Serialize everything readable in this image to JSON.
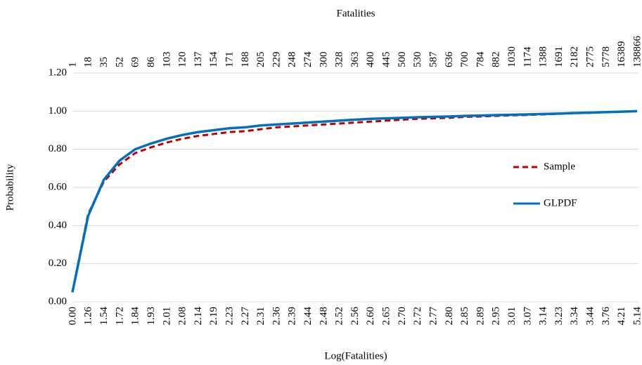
{
  "chart_data": {
    "type": "line",
    "x2_label": "Fatalities",
    "x_label": "Log(Fatalities)",
    "y_label": "Probability",
    "categories": [
      "0.00",
      "1.26",
      "1.54",
      "1.72",
      "1.84",
      "1.93",
      "2.01",
      "2.08",
      "2.14",
      "2.19",
      "2.23",
      "2.27",
      "2.31",
      "2.36",
      "2.39",
      "2.44",
      "2.48",
      "2.52",
      "2.56",
      "2.60",
      "2.65",
      "2.70",
      "2.72",
      "2.77",
      "2.80",
      "2.85",
      "2.89",
      "2.95",
      "3.01",
      "3.07",
      "3.14",
      "3.23",
      "3.34",
      "3.44",
      "3.76",
      "4.21",
      "5.14"
    ],
    "categories2": [
      "1",
      "18",
      "35",
      "52",
      "69",
      "86",
      "103",
      "120",
      "137",
      "154",
      "171",
      "188",
      "205",
      "229",
      "248",
      "274",
      "300",
      "328",
      "363",
      "400",
      "445",
      "500",
      "530",
      "587",
      "636",
      "700",
      "784",
      "882",
      "1030",
      "1174",
      "1388",
      "1691",
      "2182",
      "2775",
      "5778",
      "16389",
      "138866"
    ],
    "series": [
      {
        "name": "Sample",
        "color": "#c00000",
        "dashed": true,
        "values": [
          0.05,
          0.46,
          0.63,
          0.72,
          0.78,
          0.81,
          0.835,
          0.855,
          0.87,
          0.88,
          0.89,
          0.895,
          0.905,
          0.915,
          0.92,
          0.925,
          0.93,
          0.935,
          0.94,
          0.945,
          0.95,
          0.955,
          0.96,
          0.962,
          0.965,
          0.97,
          0.972,
          0.975,
          0.978,
          0.98,
          0.983,
          0.986,
          0.989,
          0.991,
          0.994,
          0.997,
          1.0
        ]
      },
      {
        "name": "GLPDF",
        "color": "#0070c0",
        "dashed": false,
        "values": [
          0.05,
          0.45,
          0.64,
          0.74,
          0.8,
          0.83,
          0.855,
          0.875,
          0.89,
          0.9,
          0.91,
          0.915,
          0.925,
          0.93,
          0.935,
          0.94,
          0.945,
          0.95,
          0.955,
          0.96,
          0.962,
          0.965,
          0.968,
          0.97,
          0.972,
          0.975,
          0.977,
          0.979,
          0.981,
          0.983,
          0.985,
          0.987,
          0.99,
          0.992,
          0.995,
          0.997,
          1.0
        ]
      }
    ],
    "ylim": [
      0,
      1.2
    ],
    "yticks": [
      {
        "value": 0,
        "label": "0.00"
      },
      {
        "value": 0.2,
        "label": "0.20"
      },
      {
        "value": 0.4,
        "label": "0.40"
      },
      {
        "value": 0.6,
        "label": "0.60"
      },
      {
        "value": 0.8,
        "label": "0.80"
      },
      {
        "value": 1,
        "label": "1.00"
      },
      {
        "value": 1.2,
        "label": "1.20"
      }
    ],
    "grid": true
  }
}
